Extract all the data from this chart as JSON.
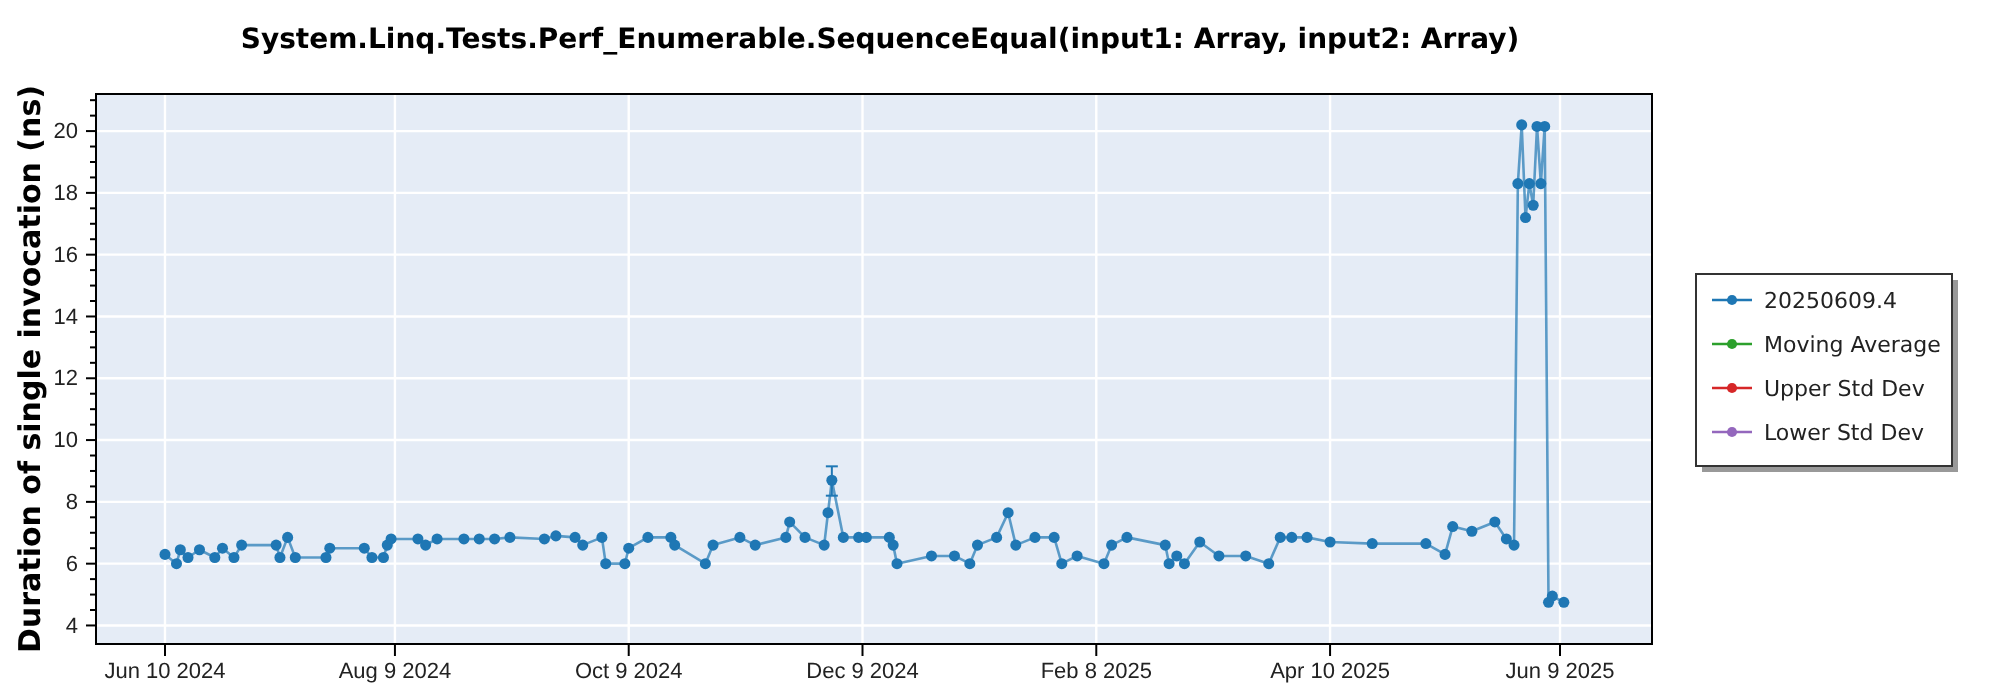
{
  "chart_data": {
    "type": "line",
    "title": "System.Linq.Tests.Perf_Enumerable.SequenceEqual(input1: Array, input2: Array)",
    "ylabel": "Duration of single invocation (ns)",
    "xlim": [
      "2024-05-23",
      "2025-07-03"
    ],
    "xticks": [
      {
        "value": "2024-06-10",
        "label": "Jun 10 2024"
      },
      {
        "value": "2024-08-09",
        "label": "Aug 9 2024"
      },
      {
        "value": "2024-10-09",
        "label": "Oct 9 2024"
      },
      {
        "value": "2024-12-09",
        "label": "Dec 9 2024"
      },
      {
        "value": "2025-02-08",
        "label": "Feb 8 2025"
      },
      {
        "value": "2025-04-10",
        "label": "Apr 10 2025"
      },
      {
        "value": "2025-06-09",
        "label": "Jun 9 2025"
      }
    ],
    "ylim": [
      3.4,
      21.2
    ],
    "yticks": [
      4,
      {
        "value": 4.5,
        "label": null
      },
      {
        "value": 5,
        "label": null
      },
      {
        "value": 5.5,
        "label": null
      },
      6,
      {
        "value": 6.5,
        "label": null
      },
      {
        "value": 7,
        "label": null
      },
      {
        "value": 7.5,
        "label": null
      },
      8,
      {
        "value": 8.5,
        "label": null
      },
      {
        "value": 9,
        "label": null
      },
      {
        "value": 9.5,
        "label": null
      },
      10,
      {
        "value": 10.5,
        "label": null
      },
      {
        "value": 11,
        "label": null
      },
      {
        "value": 11.5,
        "label": null
      },
      12,
      {
        "value": 12.5,
        "label": null
      },
      {
        "value": 13,
        "label": null
      },
      {
        "value": 13.5,
        "label": null
      },
      14,
      {
        "value": 14.5,
        "label": null
      },
      {
        "value": 15,
        "label": null
      },
      {
        "value": 15.5,
        "label": null
      },
      16,
      {
        "value": 16.5,
        "label": null
      },
      {
        "value": 17,
        "label": null
      },
      {
        "value": 17.5,
        "label": null
      },
      18,
      {
        "value": 18.5,
        "label": null
      },
      {
        "value": 19,
        "label": null
      },
      {
        "value": 19.5,
        "label": null
      },
      20,
      {
        "value": 20.5,
        "label": null
      },
      {
        "value": 21,
        "label": null
      }
    ],
    "grid": true,
    "legend": "right",
    "marker": "circle",
    "line_style": "solid",
    "series": [
      {
        "name": "20250609.4",
        "color": "#1f77b4",
        "x": [
          "2024-06-10",
          "2024-06-13",
          "2024-06-14",
          "2024-06-16",
          "2024-06-19",
          "2024-06-23",
          "2024-06-25",
          "2024-06-28",
          "2024-06-30",
          "2024-07-09",
          "2024-07-10",
          "2024-07-12",
          "2024-07-14",
          "2024-07-22",
          "2024-07-23",
          "2024-08-01",
          "2024-08-03",
          "2024-08-06",
          "2024-08-07",
          "2024-08-08",
          "2024-08-15",
          "2024-08-17",
          "2024-08-20",
          "2024-08-27",
          "2024-08-31",
          "2024-09-04",
          "2024-09-08",
          "2024-09-17",
          "2024-09-20",
          "2024-09-25",
          "2024-09-27",
          "2024-10-02",
          "2024-10-03",
          "2024-10-08",
          "2024-10-09",
          "2024-10-14",
          "2024-10-20",
          "2024-10-21",
          "2024-10-29",
          "2024-10-31",
          "2024-11-07",
          "2024-11-11",
          "2024-11-19",
          "2024-11-20",
          "2024-11-24",
          "2024-11-29",
          "2024-11-30",
          "2024-12-01",
          "2024-12-04",
          "2024-12-08",
          "2024-12-10",
          "2024-12-16",
          "2024-12-17",
          "2024-12-18",
          "2024-12-27",
          "2025-01-02",
          "2025-01-06",
          "2025-01-08",
          "2025-01-13",
          "2025-01-16",
          "2025-01-18",
          "2025-01-23",
          "2025-01-28",
          "2025-01-30",
          "2025-02-03",
          "2025-02-10",
          "2025-02-12",
          "2025-02-16",
          "2025-02-26",
          "2025-02-27",
          "2025-03-01",
          "2025-03-03",
          "2025-03-07",
          "2025-03-12",
          "2025-03-19",
          "2025-03-25",
          "2025-03-28",
          "2025-03-31",
          "2025-04-04",
          "2025-04-10",
          "2025-04-21",
          "2025-05-05",
          "2025-05-10",
          "2025-05-12",
          "2025-05-17",
          "2025-05-23",
          "2025-05-26",
          "2025-05-28",
          "2025-05-29",
          "2025-05-30",
          "2025-05-31",
          "2025-06-01",
          "2025-06-02",
          "2025-06-03",
          "2025-06-04",
          "2025-06-05",
          "2025-06-06",
          "2025-06-07",
          "2025-06-10"
        ],
        "values": [
          6.3,
          6.0,
          6.45,
          6.2,
          6.45,
          6.2,
          6.5,
          6.2,
          6.6,
          6.6,
          6.2,
          6.85,
          6.2,
          6.2,
          6.5,
          6.5,
          6.2,
          6.2,
          6.6,
          6.8,
          6.8,
          6.6,
          6.8,
          6.8,
          6.8,
          6.8,
          6.85,
          6.8,
          6.9,
          6.85,
          6.6,
          6.85,
          6.0,
          6.0,
          6.5,
          6.85,
          6.85,
          6.6,
          6.0,
          6.6,
          6.85,
          6.6,
          6.85,
          7.35,
          6.85,
          6.6,
          7.65,
          8.7,
          6.85,
          6.85,
          6.85,
          6.85,
          6.6,
          6.0,
          6.25,
          6.25,
          6.0,
          6.6,
          6.85,
          7.65,
          6.6,
          6.85,
          6.85,
          6.0,
          6.25,
          6.0,
          6.6,
          6.85,
          6.6,
          6.0,
          6.25,
          6.0,
          6.7,
          6.25,
          6.25,
          6.0,
          6.85,
          6.85,
          6.85,
          6.7,
          6.65,
          6.65,
          6.3,
          7.2,
          7.05,
          7.35,
          6.8,
          6.6,
          18.3,
          20.2,
          17.2,
          18.3,
          17.6,
          20.15,
          18.3,
          20.15,
          4.75,
          4.95,
          4.75
        ],
        "errors": [
          null,
          null,
          null,
          null,
          null,
          null,
          null,
          null,
          null,
          null,
          null,
          null,
          null,
          null,
          null,
          null,
          null,
          null,
          null,
          null,
          null,
          null,
          null,
          null,
          null,
          null,
          null,
          null,
          null,
          null,
          null,
          null,
          null,
          null,
          null,
          null,
          null,
          null,
          null,
          null,
          null,
          null,
          null,
          null,
          null,
          null,
          null,
          [
            8.2,
            9.15
          ],
          null,
          null,
          null,
          null,
          null,
          null,
          null,
          null,
          null,
          null,
          null,
          null,
          null,
          null,
          null,
          null,
          null,
          null,
          null,
          null,
          null,
          null,
          null,
          null,
          null,
          null,
          null,
          null,
          null,
          null,
          null,
          null,
          null,
          null,
          null,
          null,
          null,
          null,
          null,
          null,
          null,
          null,
          null,
          null,
          null,
          null,
          null,
          null,
          null,
          null,
          null
        ]
      },
      {
        "name": "Moving Average",
        "color": "#2ca02c"
      },
      {
        "name": "Upper Std Dev",
        "color": "#d62728"
      },
      {
        "name": "Lower Std Dev",
        "color": "#9467bd"
      }
    ]
  }
}
